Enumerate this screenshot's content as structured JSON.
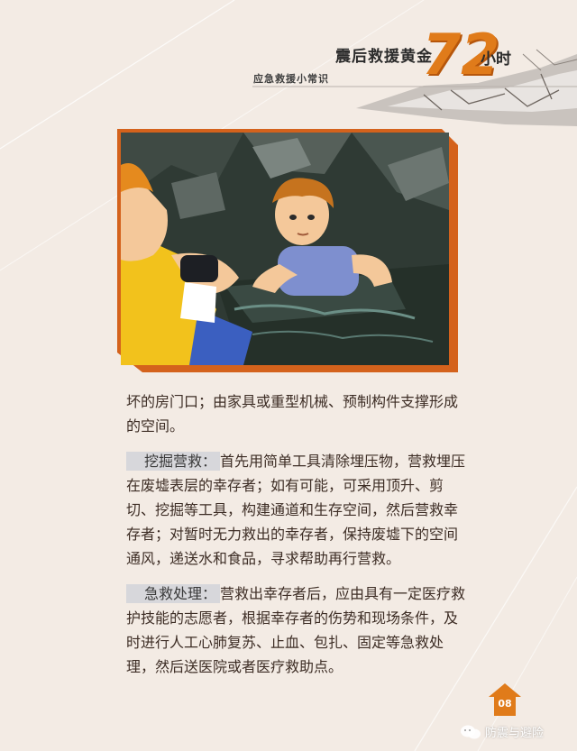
{
  "header": {
    "title_main": "震后救援黄金",
    "title_number": "72",
    "title_unit": "小时",
    "subtitle": "应急救援小常识"
  },
  "body": {
    "intro": {
      "text": "坏的房门口；由家具或重型机械、预制构件支撑形成的空间。"
    },
    "sections": [
      {
        "label": "挖掘营救：",
        "text": "首先用简单工具清除埋压物，营救埋压在废墟表层的幸存者；如有可能，可采用顶升、剪切、挖掘等工具，构建通道和生存空间，然后营救幸存者；对暂时无力救出的幸存者，保持废墟下的空间通风，递送水和食品，寻求帮助再行营救。"
      },
      {
        "label": "急救处理：",
        "text": "营救出幸存者后，应由具有一定医疗救护技能的志愿者，根据幸存者的伤势和现场条件，及时进行人工心肺复苏、止血、包扎、固定等急救处理，然后送医院或者医疗救助点。"
      }
    ]
  },
  "footer": {
    "page_number": "08",
    "watermark": "防震与避险"
  },
  "colors": {
    "accent_orange": "#e07b1a",
    "frame_orange": "#d4621c",
    "page_bg": "#f3ebe4",
    "label_bg": "#d7d7db"
  },
  "icons": [
    "wechat-icon",
    "house-badge-icon",
    "cracked-ground-graphic"
  ]
}
